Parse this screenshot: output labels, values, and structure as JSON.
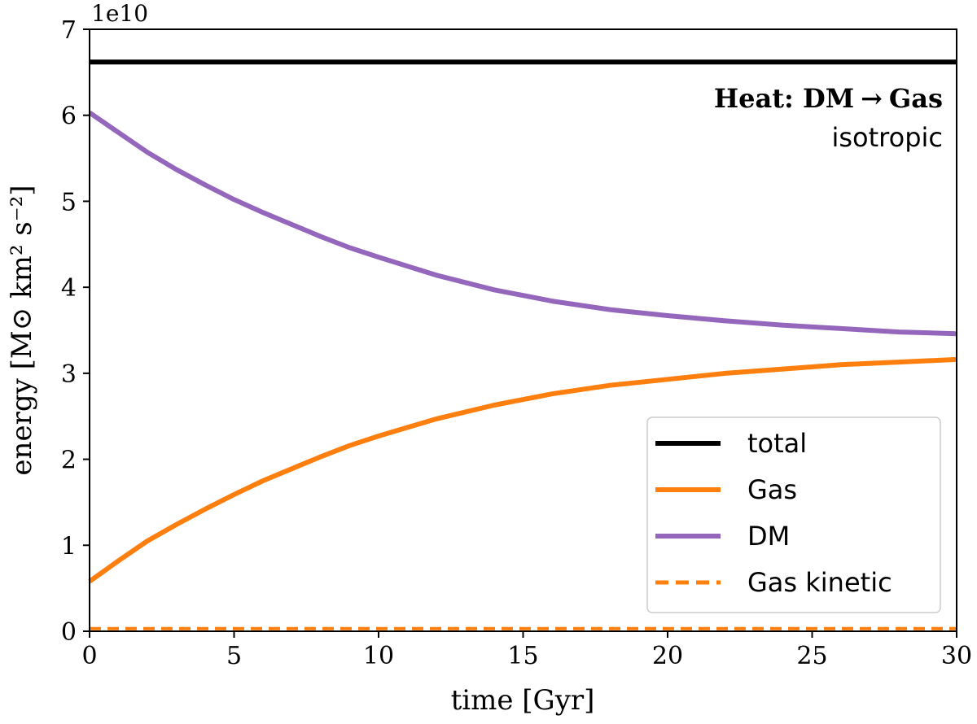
{
  "chart_data": {
    "type": "line",
    "xlabel": "time [Gyr]",
    "ylabel": "energy [M⊙ km² s⁻²]",
    "y_offset_text": "1e10",
    "xlim": [
      0,
      30
    ],
    "ylim": [
      0,
      7
    ],
    "xticks": [
      0,
      5,
      10,
      15,
      20,
      25,
      30
    ],
    "yticks": [
      0,
      1,
      2,
      3,
      4,
      5,
      6,
      7
    ],
    "grid": false,
    "annotation": {
      "title_part1": "Heat: DM",
      "arrow": "→",
      "title_part2": "Gas",
      "subtitle": "isotropic"
    },
    "legend_position": "lower-right",
    "x": [
      0,
      1,
      2,
      3,
      4,
      5,
      6,
      7,
      8,
      9,
      10,
      12,
      14,
      16,
      18,
      20,
      22,
      24,
      26,
      28,
      30
    ],
    "series": [
      {
        "name": "total",
        "color": "#000000",
        "dash": "solid",
        "values": [
          6.62,
          6.62,
          6.62,
          6.62,
          6.62,
          6.62,
          6.62,
          6.62,
          6.62,
          6.62,
          6.62,
          6.62,
          6.62,
          6.62,
          6.62,
          6.62,
          6.62,
          6.62,
          6.62,
          6.62,
          6.62
        ]
      },
      {
        "name": "Gas",
        "color": "#ff7f0e",
        "dash": "solid",
        "values": [
          0.58,
          0.82,
          1.05,
          1.24,
          1.42,
          1.59,
          1.75,
          1.89,
          2.03,
          2.16,
          2.27,
          2.47,
          2.63,
          2.76,
          2.86,
          2.93,
          3.0,
          3.05,
          3.1,
          3.13,
          3.16
        ]
      },
      {
        "name": "DM",
        "color": "#9467bd",
        "dash": "solid",
        "values": [
          6.03,
          5.8,
          5.57,
          5.37,
          5.19,
          5.02,
          4.87,
          4.73,
          4.59,
          4.46,
          4.35,
          4.14,
          3.97,
          3.84,
          3.74,
          3.67,
          3.61,
          3.56,
          3.52,
          3.48,
          3.46
        ]
      },
      {
        "name": "Gas kinetic",
        "color": "#ff7f0e",
        "dash": "dashed",
        "values": [
          0.03,
          0.03,
          0.03,
          0.03,
          0.03,
          0.03,
          0.03,
          0.03,
          0.03,
          0.03,
          0.03,
          0.03,
          0.03,
          0.03,
          0.03,
          0.03,
          0.03,
          0.03,
          0.03,
          0.03,
          0.03
        ]
      }
    ]
  }
}
